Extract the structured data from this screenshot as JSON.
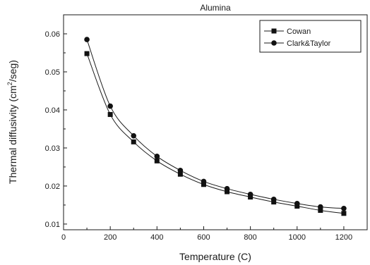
{
  "chart_data": {
    "type": "line",
    "title": "Alumina",
    "xlabel": "Temperature (C)",
    "ylabel": {
      "pre": "Thermal diffusivity (cm",
      "sup": "2",
      "post": "/seg)"
    },
    "xlim": [
      0,
      1300
    ],
    "ylim": [
      0.0085,
      0.065
    ],
    "xticks": [
      0,
      200,
      400,
      600,
      800,
      1000,
      1200
    ],
    "yticks": [
      0.01,
      0.02,
      0.03,
      0.04,
      0.05,
      0.06
    ],
    "xtick_labels": [
      "0",
      "200",
      "400",
      "600",
      "800",
      "1000",
      "1200"
    ],
    "ytick_labels": [
      "0.01",
      "0.02",
      "0.03",
      "0.04",
      "0.05",
      "0.06"
    ],
    "grid": false,
    "legend_position": "top-right",
    "x": [
      100,
      200,
      300,
      400,
      500,
      600,
      700,
      800,
      900,
      1000,
      1100,
      1200
    ],
    "series": [
      {
        "name": "Cowan",
        "marker": "square",
        "values": [
          0.0548,
          0.0388,
          0.0316,
          0.0266,
          0.0231,
          0.0204,
          0.0185,
          0.0171,
          0.0158,
          0.0147,
          0.0136,
          0.0128
        ]
      },
      {
        "name": "Clark&Taylor",
        "marker": "circle",
        "values": [
          0.0585,
          0.041,
          0.0332,
          0.0278,
          0.0241,
          0.0212,
          0.0193,
          0.0178,
          0.0165,
          0.0154,
          0.0145,
          0.0141
        ]
      }
    ],
    "colors": {
      "line": "#1a1a1a",
      "marker": "#111111"
    }
  }
}
